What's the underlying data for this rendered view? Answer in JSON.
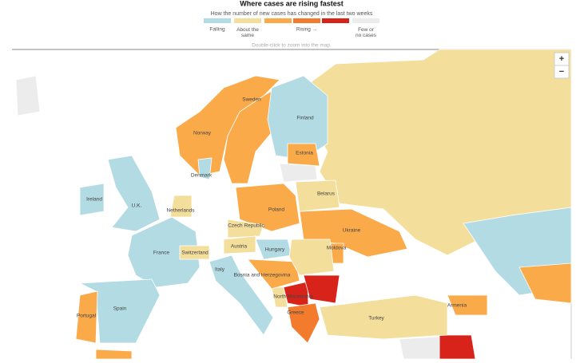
{
  "header": {
    "title": "Where cases are rising fastest",
    "subtitle": "How the number of new cases has changed in the last two weeks"
  },
  "legend": [
    {
      "label": "Falling",
      "colors": [
        "#b3dbe3"
      ]
    },
    {
      "label": "About the same",
      "colors": [
        "#f3de9c"
      ]
    },
    {
      "label": "Rising →",
      "colors": [
        "#fbaa4a",
        "#f27b2e",
        "#d8231b"
      ]
    },
    {
      "label": "Few or no cases",
      "colors": [
        "#ececec"
      ]
    }
  ],
  "hint": "Double-click to zoom into the map.",
  "zoom": {
    "in": "+",
    "out": "−"
  },
  "countries": [
    {
      "name": "Sweden",
      "color": "#fbaa4a"
    },
    {
      "name": "Finland",
      "color": "#b3dbe3"
    },
    {
      "name": "Norway",
      "color": "#fbaa4a"
    },
    {
      "name": "Estonia",
      "color": "#fbaa4a"
    },
    {
      "name": "Denmark",
      "color": "#b3dbe3"
    },
    {
      "name": "Belarus",
      "color": "#f3de9c"
    },
    {
      "name": "Ireland",
      "color": "#b3dbe3"
    },
    {
      "name": "U.K.",
      "color": "#b3dbe3"
    },
    {
      "name": "Netherlands",
      "color": "#f3de9c"
    },
    {
      "name": "Poland",
      "color": "#fbaa4a"
    },
    {
      "name": "Czech Republic",
      "color": "#f3de9c"
    },
    {
      "name": "Ukraine",
      "color": "#fbaa4a"
    },
    {
      "name": "Austria",
      "color": "#f3de9c"
    },
    {
      "name": "Hungary",
      "color": "#b3dbe3"
    },
    {
      "name": "Moldova",
      "color": "#fbaa4a"
    },
    {
      "name": "France",
      "color": "#b3dbe3"
    },
    {
      "name": "Switzerland",
      "color": "#f3de9c"
    },
    {
      "name": "Italy",
      "color": "#b3dbe3"
    },
    {
      "name": "Bosnia and Herzegovina",
      "color": "#fbaa4a"
    },
    {
      "name": "North Macedonia",
      "color": "#d8231b"
    },
    {
      "name": "Spain",
      "color": "#b3dbe3"
    },
    {
      "name": "Armenia",
      "color": "#fbaa4a"
    },
    {
      "name": "Turkey",
      "color": "#f3de9c"
    },
    {
      "name": "Portugal",
      "color": "#fbaa4a"
    },
    {
      "name": "Greece",
      "color": "#f27b2e"
    }
  ]
}
